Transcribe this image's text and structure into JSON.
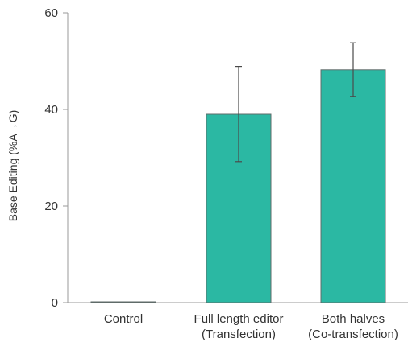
{
  "chart_data": {
    "type": "bar",
    "ylabel": "Base Editing (%A→G)",
    "xlabel": "",
    "title": "",
    "ylim": [
      0,
      60
    ],
    "yticks": [
      0,
      20,
      40,
      60
    ],
    "grid": false,
    "categories": [
      {
        "line1": "Control",
        "line2": ""
      },
      {
        "line1": "Full length editor",
        "line2": "(Transfection)"
      },
      {
        "line1": "Both halves",
        "line2": "(Co-transfection)"
      }
    ],
    "values": [
      0,
      39,
      48.2
    ],
    "error": [
      {
        "low": 0,
        "high": 0
      },
      {
        "low": 29.2,
        "high": 48.9
      },
      {
        "low": 42.7,
        "high": 53.8
      }
    ],
    "bar_color": "#2bb8a3",
    "bar_edge_color": "#5f6b69",
    "error_color": "#4a4a4a"
  }
}
